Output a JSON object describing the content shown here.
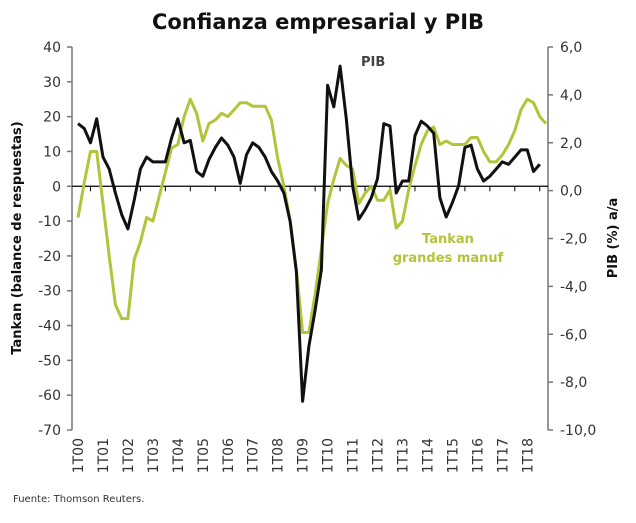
{
  "chart_data": {
    "type": "line",
    "title": "Confianza empresarial  y PIB",
    "ylabel_left": "Tankan (balance de respuestas)",
    "ylabel_right": "PIB (%) a/a",
    "ylim_left": [
      -70,
      40
    ],
    "ylim_right": [
      -10,
      6
    ],
    "yticks_left": [
      "40",
      "30",
      "20",
      "10",
      "0",
      "-10",
      "-20",
      "-30",
      "-40",
      "-50",
      "-60",
      "-70"
    ],
    "yticks_left_values": [
      40,
      30,
      20,
      10,
      0,
      -10,
      -20,
      -30,
      -40,
      -50,
      -60,
      -70
    ],
    "yticks_right": [
      "6,0",
      "4,0",
      "2,0",
      "0,0",
      "-2,0",
      "-4,0",
      "-6,0",
      "-8,0",
      "-10,0"
    ],
    "yticks_right_values": [
      6,
      4,
      2,
      0,
      -2,
      -4,
      -6,
      -8,
      -10
    ],
    "xticks": [
      "1T00",
      "1T01",
      "1T02",
      "1T03",
      "1T04",
      "1T05",
      "1T06",
      "1T07",
      "1T08",
      "1T09",
      "1T10",
      "1T11",
      "1T12",
      "1T13",
      "1T14",
      "1T15",
      "1T16",
      "1T17",
      "1T18"
    ],
    "grid": false,
    "series": [
      {
        "name": "Tankan grandes manuf",
        "axis": "left",
        "color": "#b5c33a",
        "annotation": "Tankan\ngrandes manuf",
        "values": [
          -9,
          1,
          10,
          10,
          -5,
          -20,
          -34,
          -38,
          -38,
          -21,
          -16,
          -9,
          -10,
          -3,
          4,
          11,
          12,
          20,
          25,
          21,
          13,
          18,
          19,
          21,
          20,
          22,
          24,
          24,
          23,
          23,
          23,
          19,
          8,
          0,
          -10,
          -24,
          -42,
          -42,
          -31,
          -18,
          -5,
          2,
          8,
          6,
          5,
          -5,
          -2,
          0,
          -4,
          -4,
          -1,
          -12,
          -10,
          -1,
          6,
          12,
          16,
          17,
          12,
          13,
          12,
          12,
          12,
          14,
          14,
          10,
          7,
          7,
          9,
          12,
          16,
          22,
          25,
          24,
          20,
          18
        ]
      },
      {
        "name": "PIB",
        "axis": "right",
        "color": "#111111",
        "annotation": "PIB",
        "values": [
          2.8,
          2.6,
          2.0,
          3.0,
          1.4,
          0.9,
          -0.1,
          -1.0,
          -1.6,
          -0.4,
          0.9,
          1.4,
          1.2,
          1.2,
          1.2,
          2.2,
          3.0,
          2.0,
          2.1,
          0.8,
          0.6,
          1.3,
          1.8,
          2.2,
          1.9,
          1.4,
          0.3,
          1.5,
          2.0,
          1.8,
          1.4,
          0.8,
          0.4,
          -0.1,
          -1.3,
          -3.4,
          -8.8,
          -6.5,
          -5.0,
          -3.3,
          4.4,
          3.5,
          5.2,
          3.0,
          0.2,
          -1.2,
          -0.8,
          -0.3,
          0.5,
          2.8,
          2.7,
          -0.1,
          0.4,
          0.4,
          2.3,
          2.9,
          2.7,
          2.4,
          -0.3,
          -1.1,
          -0.5,
          0.2,
          1.8,
          1.9,
          0.9,
          0.4,
          0.6,
          0.9,
          1.2,
          1.1,
          1.4,
          1.7,
          1.7,
          0.8,
          1.1
        ]
      }
    ]
  },
  "footer": {
    "source": "Fuente: Thomson Reuters."
  }
}
